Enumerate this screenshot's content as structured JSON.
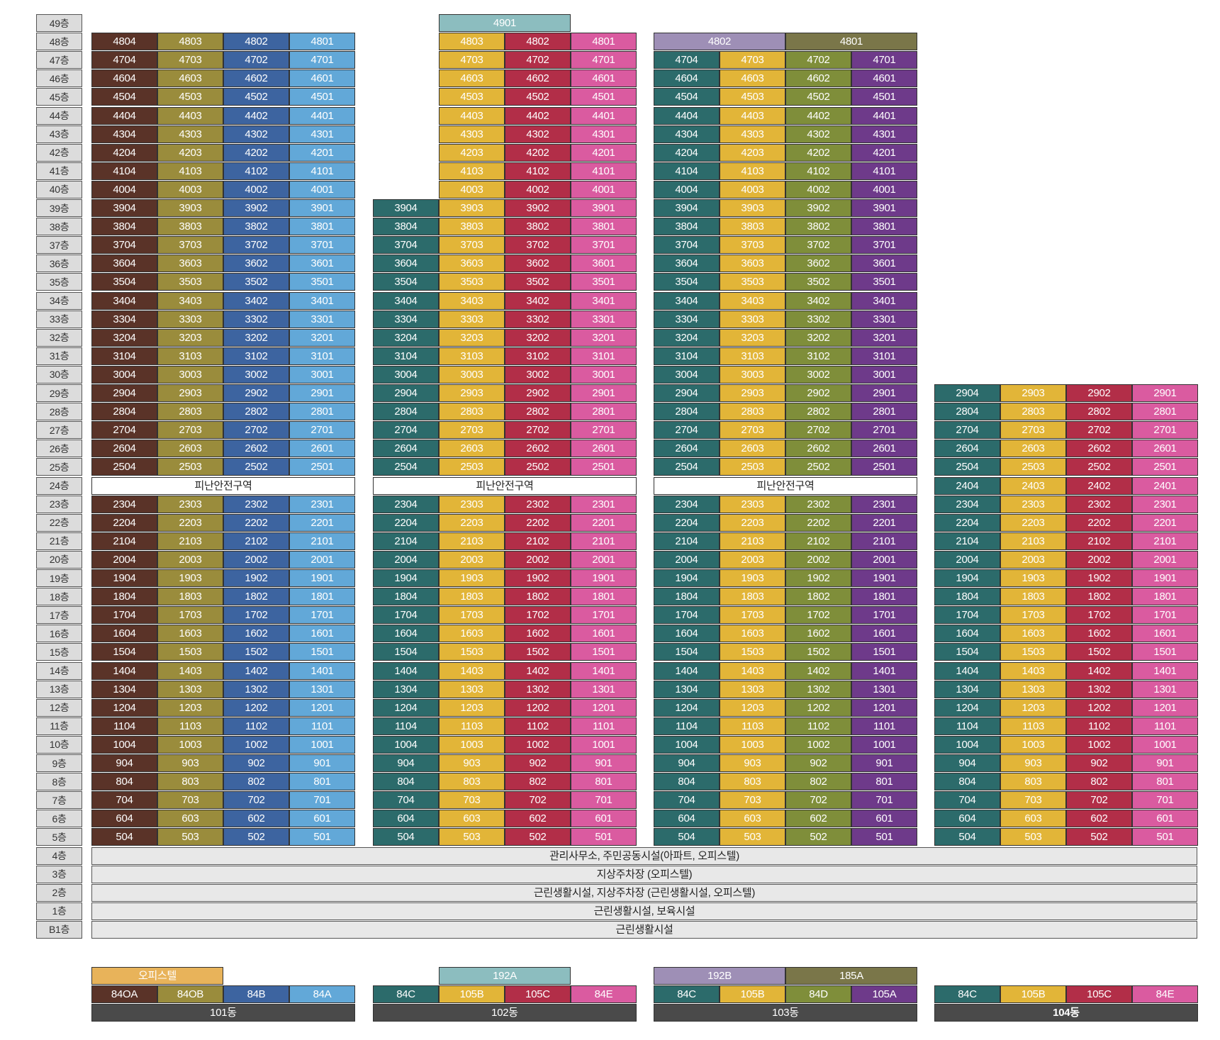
{
  "floors": [
    "49층",
    "48층",
    "47층",
    "46층",
    "45층",
    "44층",
    "43층",
    "42층",
    "41층",
    "40층",
    "39층",
    "38층",
    "37층",
    "36층",
    "35층",
    "34층",
    "33층",
    "32층",
    "31층",
    "30층",
    "29층",
    "28층",
    "27층",
    "26층",
    "25층",
    "24층",
    "23층",
    "22층",
    "21층",
    "20층",
    "19층",
    "18층",
    "17층",
    "16층",
    "15층",
    "14층",
    "13층",
    "12층",
    "11층",
    "10층",
    "9층",
    "8층",
    "7층",
    "6층",
    "5층",
    "4층",
    "3층",
    "2층",
    "1층",
    "B1층"
  ],
  "refuge_label": "피난안전구역",
  "colors": {
    "84OA": "#5a3328",
    "84OB": "#9a8c3c",
    "84B": "#3d64a0",
    "84A": "#62a8d8",
    "84C": "#2c6b6b",
    "105B": "#e2b538",
    "105C": "#b22e48",
    "84E": "#da5ba0",
    "84D": "#7f8e3a",
    "105A": "#6e3a8a",
    "192A": "#8cbdbf",
    "192B": "#9e8fb6",
    "185A": "#7a7649",
    "officetel": "#e8b35a",
    "building_label": "#4a4a4a"
  },
  "buildings": [
    {
      "name": "101동",
      "bold": false,
      "columns": [
        {
          "type": "84OA",
          "suffix": "04"
        },
        {
          "type": "84OB",
          "suffix": "03"
        },
        {
          "type": "84B",
          "suffix": "02"
        },
        {
          "type": "84A",
          "suffix": "01"
        }
      ],
      "top_floor": 48,
      "refuge_floor": 24,
      "penthouse": [],
      "legend_top": [
        {
          "label": "오피스텔",
          "color_key": "officetel"
        }
      ],
      "legend": [
        "84OA",
        "84OB",
        "84B",
        "84A"
      ]
    },
    {
      "name": "102동",
      "bold": false,
      "columns": [
        {
          "type": "84C",
          "suffix": "04",
          "max_floor": 39
        },
        {
          "type": "105B",
          "suffix": "03"
        },
        {
          "type": "105C",
          "suffix": "02"
        },
        {
          "type": "84E",
          "suffix": "01"
        }
      ],
      "top_floor": 48,
      "refuge_floor": 24,
      "penthouse": [
        {
          "label": "4901",
          "color_key": "192A"
        }
      ],
      "legend_top": [
        {
          "label": "192A",
          "color_key": "192A"
        }
      ],
      "legend": [
        "84C",
        "105B",
        "105C",
        "84E"
      ]
    },
    {
      "name": "103동",
      "bold": false,
      "columns": [
        {
          "type": "84C",
          "suffix": "04"
        },
        {
          "type": "105B",
          "suffix": "03"
        },
        {
          "type": "84D",
          "suffix": "02"
        },
        {
          "type": "105A",
          "suffix": "01"
        }
      ],
      "top_floor": 47,
      "refuge_floor": 24,
      "penthouse": [
        {
          "label": "4802",
          "color_key": "192B"
        },
        {
          "label": "4801",
          "color_key": "185A"
        }
      ],
      "legend_top": [
        {
          "label": "192B",
          "color_key": "192B"
        },
        {
          "label": "185A",
          "color_key": "185A"
        }
      ],
      "legend": [
        "84C",
        "105B",
        "84D",
        "105A"
      ]
    },
    {
      "name": "104동",
      "bold": true,
      "columns": [
        {
          "type": "84C",
          "suffix": "04"
        },
        {
          "type": "105B",
          "suffix": "03"
        },
        {
          "type": "105C",
          "suffix": "02"
        },
        {
          "type": "84E",
          "suffix": "01"
        }
      ],
      "top_floor": 29,
      "refuge_floor": null,
      "penthouse": [],
      "legend_top": [],
      "legend": [
        "84C",
        "105B",
        "105C",
        "84E"
      ]
    }
  ],
  "common_facilities": [
    {
      "floor": "4층",
      "label": "관리사무소, 주민공동시설(아파트, 오피스텔)"
    },
    {
      "floor": "3층",
      "label": "지상주차장 (오피스텔)"
    },
    {
      "floor": "2층",
      "label": "근린생활시설, 지상주차장 (근린생활시설, 오피스텔)"
    },
    {
      "floor": "1층",
      "label": "근린생활시설, 보육시설"
    },
    {
      "floor": "B1층",
      "label": "근린생활시설"
    }
  ]
}
